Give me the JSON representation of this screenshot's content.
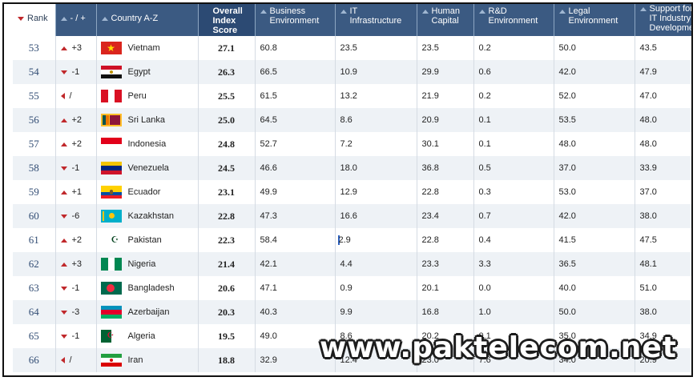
{
  "headers": [
    {
      "label": "Rank",
      "sort": "down"
    },
    {
      "label": "- / +",
      "sort": "up"
    },
    {
      "label": "Country A-Z",
      "sort": "up"
    },
    {
      "label": "Overall\nIndex\nScore",
      "sort": "none"
    },
    {
      "label": "Business\nEnvironment",
      "sort": "up"
    },
    {
      "label": "IT\nInfrastructure",
      "sort": "up"
    },
    {
      "label": "Human\nCapital",
      "sort": "up"
    },
    {
      "label": "R&D\nEnvironment",
      "sort": "up"
    },
    {
      "label": "Legal\nEnvironment",
      "sort": "up"
    },
    {
      "label": "Support for\nIT Industry\nDevelopment",
      "sort": "up"
    }
  ],
  "rows": [
    {
      "rank": "53",
      "change": "+3",
      "dir": "up",
      "country": "Vietnam",
      "flag": "vietnam",
      "score": "27.1",
      "business": "60.8",
      "it": "23.5",
      "human": "23.5",
      "rd": "0.2",
      "legal": "50.0",
      "support": "43.5"
    },
    {
      "rank": "54",
      "change": "-1",
      "dir": "down",
      "country": "Egypt",
      "flag": "egypt",
      "score": "26.3",
      "business": "66.5",
      "it": "10.9",
      "human": "29.9",
      "rd": "0.6",
      "legal": "42.0",
      "support": "47.9"
    },
    {
      "rank": "55",
      "change": "/",
      "dir": "left",
      "country": "Peru",
      "flag": "peru",
      "score": "25.5",
      "business": "61.5",
      "it": "13.2",
      "human": "21.9",
      "rd": "0.2",
      "legal": "52.0",
      "support": "47.0"
    },
    {
      "rank": "56",
      "change": "+2",
      "dir": "up",
      "country": "Sri Lanka",
      "flag": "srilanka",
      "score": "25.0",
      "business": "64.5",
      "it": "8.6",
      "human": "20.9",
      "rd": "0.1",
      "legal": "53.5",
      "support": "48.0"
    },
    {
      "rank": "57",
      "change": "+2",
      "dir": "up",
      "country": "Indonesia",
      "flag": "indonesia",
      "score": "24.8",
      "business": "52.7",
      "it": "7.2",
      "human": "30.1",
      "rd": "0.1",
      "legal": "48.0",
      "support": "48.0"
    },
    {
      "rank": "58",
      "change": "-1",
      "dir": "down",
      "country": "Venezuela",
      "flag": "venezuela",
      "score": "24.5",
      "business": "46.6",
      "it": "18.0",
      "human": "36.8",
      "rd": "0.5",
      "legal": "37.0",
      "support": "33.9"
    },
    {
      "rank": "59",
      "change": "+1",
      "dir": "up",
      "country": "Ecuador",
      "flag": "ecuador",
      "score": "23.1",
      "business": "49.9",
      "it": "12.9",
      "human": "22.8",
      "rd": "0.3",
      "legal": "53.0",
      "support": "37.0"
    },
    {
      "rank": "60",
      "change": "-6",
      "dir": "down",
      "country": "Kazakhstan",
      "flag": "kazakhstan",
      "score": "22.8",
      "business": "47.3",
      "it": "16.6",
      "human": "23.4",
      "rd": "0.7",
      "legal": "42.0",
      "support": "38.0"
    },
    {
      "rank": "61",
      "change": "+2",
      "dir": "up",
      "country": "Pakistan",
      "flag": "pakistan",
      "score": "22.3",
      "business": "58.4",
      "it": "2.9",
      "human": "22.8",
      "rd": "0.4",
      "legal": "41.5",
      "support": "47.5"
    },
    {
      "rank": "62",
      "change": "+3",
      "dir": "up",
      "country": "Nigeria",
      "flag": "nigeria",
      "score": "21.4",
      "business": "42.1",
      "it": "4.4",
      "human": "23.3",
      "rd": "3.3",
      "legal": "36.5",
      "support": "48.1"
    },
    {
      "rank": "63",
      "change": "-1",
      "dir": "down",
      "country": "Bangladesh",
      "flag": "bangladesh",
      "score": "20.6",
      "business": "47.1",
      "it": "0.9",
      "human": "20.1",
      "rd": "0.0",
      "legal": "40.0",
      "support": "51.0"
    },
    {
      "rank": "64",
      "change": "-3",
      "dir": "down",
      "country": "Azerbaijan",
      "flag": "azerbaijan",
      "score": "20.3",
      "business": "40.3",
      "it": "9.9",
      "human": "16.8",
      "rd": "1.0",
      "legal": "50.0",
      "support": "38.0"
    },
    {
      "rank": "65",
      "change": "-1",
      "dir": "down",
      "country": "Algeria",
      "flag": "algeria",
      "score": "19.5",
      "business": "49.0",
      "it": "8.6",
      "human": "20.2",
      "rd": "0.1",
      "legal": "35.0",
      "support": "34.9"
    },
    {
      "rank": "66",
      "change": "/",
      "dir": "left",
      "country": "Iran",
      "flag": "iran",
      "score": "18.8",
      "business": "32.9",
      "it": "12.4",
      "human": "23.0",
      "rd": "7.6",
      "legal": "34.0",
      "support": "20.9"
    }
  ],
  "watermark": "www.paktelecom.net"
}
